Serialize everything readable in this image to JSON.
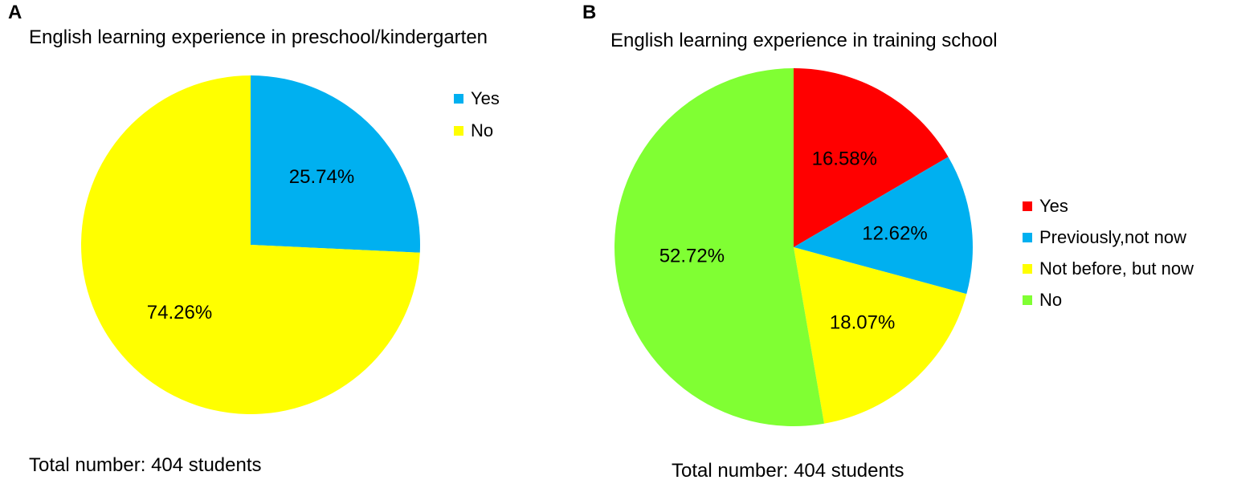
{
  "chart_data": [
    {
      "type": "pie",
      "panel_label": "A",
      "title": "English learning experience in preschool/kindergarten",
      "footer": "Total number: 404 students",
      "legend_position": "right",
      "slices": [
        {
          "label": "Yes",
          "value": 25.74,
          "value_label": "25.74%",
          "color": "#00B0F0"
        },
        {
          "label": "No",
          "value": 74.26,
          "value_label": "74.26%",
          "color": "#FFFF00"
        }
      ]
    },
    {
      "type": "pie",
      "panel_label": "B",
      "title": "English learning experience in training school",
      "footer": "Total number: 404 students",
      "legend_position": "right",
      "slices": [
        {
          "label": "Yes",
          "value": 16.58,
          "value_label": "16.58%",
          "color": "#FF0000"
        },
        {
          "label": "Previously,not now",
          "value": 12.62,
          "value_label": "12.62%",
          "color": "#00B0F0"
        },
        {
          "label": "Not before, but now",
          "value": 18.07,
          "value_label": "18.07%",
          "color": "#FFFF00"
        },
        {
          "label": "No",
          "value": 52.72,
          "value_label": "52.72%",
          "color": "#80FF33"
        }
      ]
    }
  ]
}
